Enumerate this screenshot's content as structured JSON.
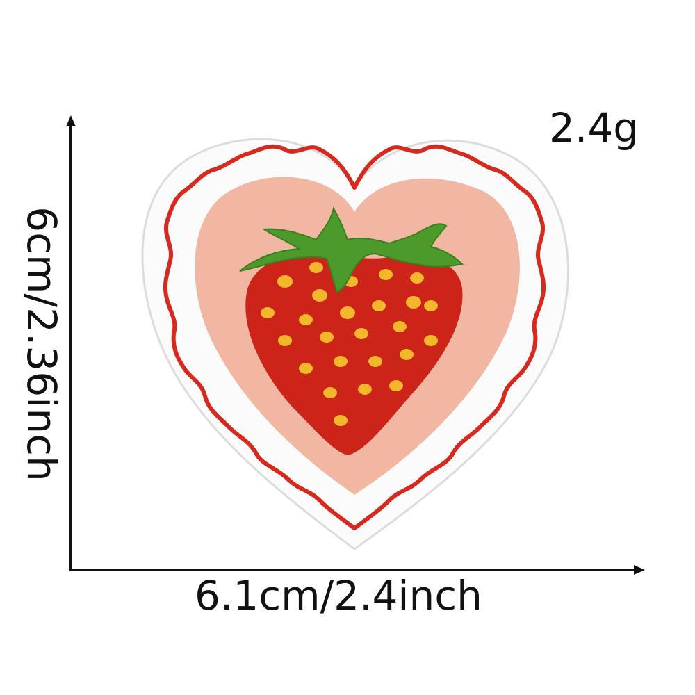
{
  "product": {
    "name": "strawberry heart embroidered patch",
    "weight_label": "2.4g",
    "width_label": "6.1cm/2.4inch",
    "height_label": "6cm/2.36inch"
  },
  "colors": {
    "ruffle_red": "#d8291e",
    "ruffle_white": "#fbfbfb",
    "inner_pink": "#f2b7a2",
    "strawberry_red": "#cc2418",
    "seed_yellow": "#f4b62a",
    "leaf_green": "#4d9a2c",
    "axis_black": "#111111"
  }
}
